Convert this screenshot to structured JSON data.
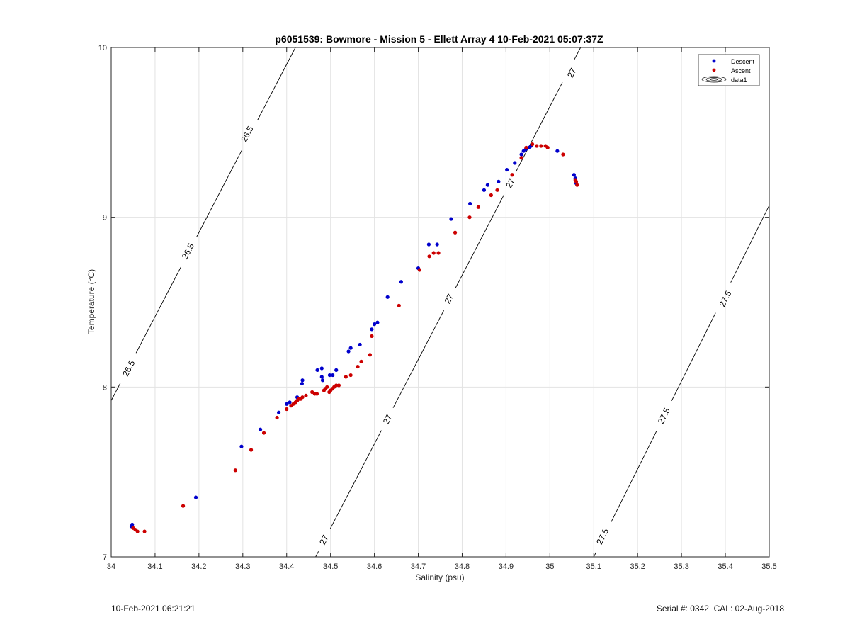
{
  "chart_data": {
    "type": "scatter",
    "title": "p6051539: Bowmore - Mission 5 - Ellett Array 4 10-Feb-2021 05:07:37Z",
    "xlabel": "Salinity (psu)",
    "ylabel": "Temperature (°C)",
    "xlim": [
      34,
      35.5
    ],
    "ylim": [
      7,
      10
    ],
    "xticks": [
      "34",
      "34.1",
      "34.2",
      "34.3",
      "34.4",
      "34.5",
      "34.6",
      "34.7",
      "34.8",
      "34.9",
      "35",
      "35.1",
      "35.2",
      "35.3",
      "35.4",
      "35.5"
    ],
    "yticks": [
      "7",
      "8",
      "9",
      "10"
    ],
    "grid": true,
    "legend_position": "top-right",
    "legend": [
      "Descent",
      "Ascent",
      "data1"
    ],
    "series": [
      {
        "name": "Descent",
        "color": "#0000cc",
        "points": [
          [
            34.046,
            7.18
          ],
          [
            34.048,
            7.19
          ],
          [
            34.193,
            7.35
          ],
          [
            34.297,
            7.65
          ],
          [
            34.34,
            7.75
          ],
          [
            34.382,
            7.85
          ],
          [
            34.4,
            7.9
          ],
          [
            34.407,
            7.91
          ],
          [
            34.424,
            7.94
          ],
          [
            34.435,
            8.02
          ],
          [
            34.436,
            8.04
          ],
          [
            34.47,
            8.1
          ],
          [
            34.48,
            8.11
          ],
          [
            34.48,
            8.06
          ],
          [
            34.482,
            8.04
          ],
          [
            34.498,
            8.07
          ],
          [
            34.505,
            8.07
          ],
          [
            34.513,
            8.1
          ],
          [
            34.541,
            8.21
          ],
          [
            34.546,
            8.23
          ],
          [
            34.567,
            8.25
          ],
          [
            34.594,
            8.34
          ],
          [
            34.6,
            8.37
          ],
          [
            34.607,
            8.38
          ],
          [
            34.63,
            8.53
          ],
          [
            34.661,
            8.62
          ],
          [
            34.7,
            8.7
          ],
          [
            34.724,
            8.84
          ],
          [
            34.743,
            8.84
          ],
          [
            34.775,
            8.99
          ],
          [
            34.818,
            9.08
          ],
          [
            34.85,
            9.16
          ],
          [
            34.858,
            9.19
          ],
          [
            34.883,
            9.21
          ],
          [
            34.902,
            9.28
          ],
          [
            34.92,
            9.32
          ],
          [
            34.935,
            9.37
          ],
          [
            34.94,
            9.39
          ],
          [
            34.945,
            9.4
          ],
          [
            34.952,
            9.41
          ],
          [
            34.957,
            9.42
          ],
          [
            35.017,
            9.39
          ],
          [
            35.055,
            9.25
          ],
          [
            35.058,
            9.23
          ],
          [
            35.06,
            9.2
          ]
        ]
      },
      {
        "name": "Ascent",
        "color": "#cc0000",
        "points": [
          [
            34.05,
            7.17
          ],
          [
            34.055,
            7.16
          ],
          [
            34.06,
            7.15
          ],
          [
            34.076,
            7.15
          ],
          [
            34.164,
            7.3
          ],
          [
            34.283,
            7.51
          ],
          [
            34.319,
            7.63
          ],
          [
            34.348,
            7.73
          ],
          [
            34.378,
            7.82
          ],
          [
            34.4,
            7.87
          ],
          [
            34.41,
            7.89
          ],
          [
            34.415,
            7.9
          ],
          [
            34.42,
            7.91
          ],
          [
            34.424,
            7.92
          ],
          [
            34.428,
            7.93
          ],
          [
            34.432,
            7.93
          ],
          [
            34.436,
            7.94
          ],
          [
            34.444,
            7.95
          ],
          [
            34.458,
            7.97
          ],
          [
            34.464,
            7.96
          ],
          [
            34.469,
            7.96
          ],
          [
            34.485,
            7.98
          ],
          [
            34.488,
            7.99
          ],
          [
            34.492,
            8.0
          ],
          [
            34.497,
            7.97
          ],
          [
            34.5,
            7.98
          ],
          [
            34.504,
            7.99
          ],
          [
            34.508,
            8.0
          ],
          [
            34.513,
            8.01
          ],
          [
            34.519,
            8.01
          ],
          [
            34.535,
            8.06
          ],
          [
            34.546,
            8.07
          ],
          [
            34.562,
            8.12
          ],
          [
            34.57,
            8.15
          ],
          [
            34.59,
            8.19
          ],
          [
            34.594,
            8.3
          ],
          [
            34.656,
            8.48
          ],
          [
            34.703,
            8.69
          ],
          [
            34.725,
            8.77
          ],
          [
            34.735,
            8.79
          ],
          [
            34.746,
            8.79
          ],
          [
            34.784,
            8.91
          ],
          [
            34.817,
            9.0
          ],
          [
            34.837,
            9.06
          ],
          [
            34.866,
            9.13
          ],
          [
            34.88,
            9.16
          ],
          [
            34.914,
            9.25
          ],
          [
            34.935,
            9.35
          ],
          [
            34.946,
            9.41
          ],
          [
            34.96,
            9.43
          ],
          [
            34.97,
            9.42
          ],
          [
            34.98,
            9.42
          ],
          [
            34.99,
            9.42
          ],
          [
            34.995,
            9.41
          ],
          [
            35.03,
            9.37
          ],
          [
            35.058,
            9.22
          ],
          [
            35.06,
            9.21
          ],
          [
            35.062,
            9.19
          ]
        ]
      }
    ],
    "contours": [
      {
        "level": "26.5",
        "line": [
          [
            34.0,
            7.92
          ],
          [
            34.42,
            10.0
          ]
        ],
        "labels": [
          [
            34.04,
            8.11
          ],
          [
            34.175,
            8.8
          ],
          [
            34.31,
            9.49
          ]
        ]
      },
      {
        "level": "27",
        "line": [
          [
            34.466,
            7.0
          ],
          [
            35.07,
            10.0
          ]
        ],
        "labels": [
          [
            34.485,
            7.1
          ],
          [
            34.63,
            7.81
          ],
          [
            34.77,
            8.52
          ],
          [
            34.91,
            9.2
          ],
          [
            35.05,
            9.85
          ]
        ]
      },
      {
        "level": "27.5",
        "line": [
          [
            35.1,
            7.0
          ],
          [
            35.5,
            9.07
          ]
        ],
        "labels": [
          [
            35.12,
            7.12
          ],
          [
            35.26,
            7.83
          ],
          [
            35.4,
            8.52
          ]
        ]
      }
    ]
  },
  "footer": {
    "left": "10-Feb-2021 06:21:21",
    "right": "Serial #: 0342  CAL: 02-Aug-2018"
  }
}
